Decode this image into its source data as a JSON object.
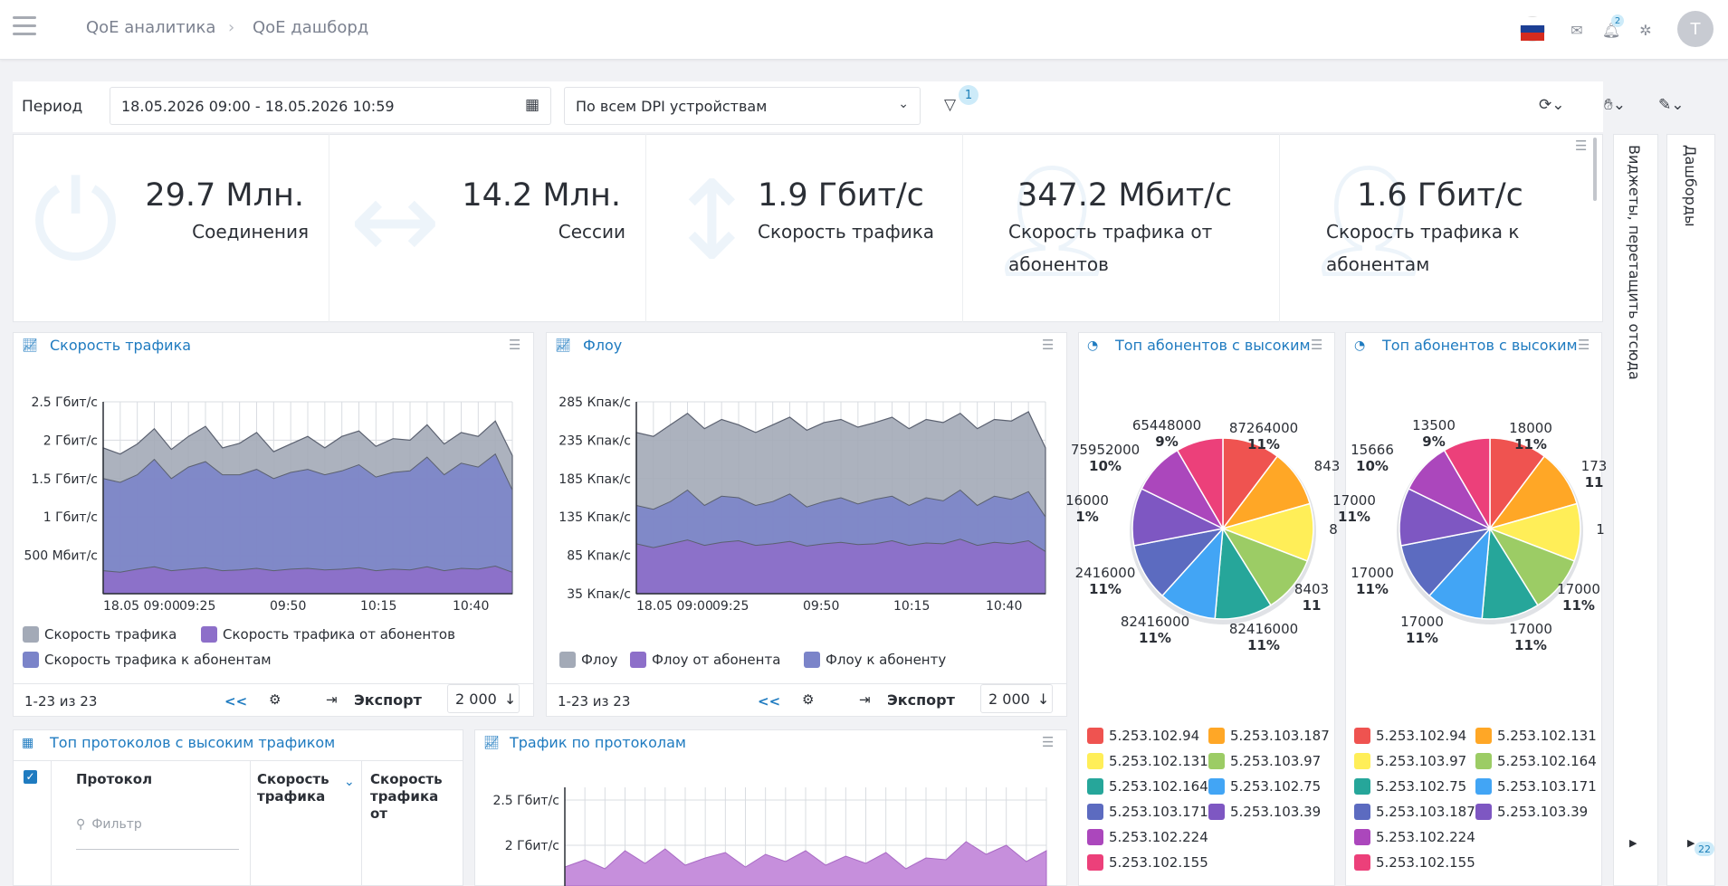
{
  "breadcrumb": {
    "root": "QoE аналитика",
    "current": "QoE дашборд"
  },
  "header": {
    "notifications_count": "2",
    "avatar_letter": "T"
  },
  "toolbar": {
    "period_label": "Период",
    "period_value": "18.05.2026 09:00 - 18.05.2026 10:59",
    "device_value": "По всем DPI устройствам",
    "filter_count": "1"
  },
  "kpis": [
    {
      "value": "29.7 Млн.",
      "label": "Соединения",
      "icon": "plug-icon"
    },
    {
      "value": "14.2 Млн.",
      "label": "Сессии",
      "icon": "arrows-horizontal-icon"
    },
    {
      "value": "1.9 Гбит/с",
      "label": "Скорость трафика",
      "icon": "arrows-vertical-icon"
    },
    {
      "value": "347.2 Мбит/с",
      "label": "Скорость трафика от абонентов",
      "icon": "user-icon"
    },
    {
      "value": "1.6 Гбит/с",
      "label": "Скорость трафика к абонентам",
      "icon": "user-icon"
    }
  ],
  "traffic_panel": {
    "title": "Скорость трафика",
    "range": "1-23 из 23",
    "prev": "<<",
    "export": "Экспорт",
    "rows": "2 000"
  },
  "flow_panel": {
    "title": "Флоу",
    "range": "1-23 из 23",
    "prev": "<<",
    "export": "Экспорт",
    "rows": "2 000"
  },
  "pie1": {
    "title": "Топ абонентов с высоким"
  },
  "pie2": {
    "title": "Топ абонентов с высоким"
  },
  "protocols_table": {
    "title": "Топ протоколов с высоким трафиком",
    "col_protocol": "Протокол",
    "col_speed": "Скорость трафика",
    "col_speed_from": "Скорость трафика от",
    "filter_placeholder": "Фильтр"
  },
  "proto_traffic": {
    "title": "Трафик по протоколам"
  },
  "side": {
    "widgets": "Виджеты, перетащить отсюда",
    "dashboards": "Дашборды",
    "counter": "22"
  },
  "colors": {
    "accent": "#1f7bc0",
    "grey_area": "#a3aab7",
    "blue_area": "#7b84c9",
    "purple_area": "#8d6fc9"
  },
  "chart_data": [
    {
      "type": "area",
      "title": "Скорость трафика",
      "x_ticks": [
        "18.05 09:00",
        "09:25",
        "09:50",
        "10:15",
        "10:40"
      ],
      "y_ticks": [
        "500 Мбит/с",
        "1 Гбит/с",
        "1.5 Гбит/с",
        "2 Гбит/с",
        "2.5 Гбит/с"
      ],
      "ylim": [
        0,
        2.5
      ],
      "series": [
        {
          "name": "Скорость трафика",
          "color": "#a3aab7",
          "values": [
            1.9,
            1.82,
            1.95,
            2.15,
            1.88,
            2.05,
            2.18,
            1.9,
            1.96,
            2.1,
            1.85,
            1.95,
            2.05,
            1.9,
            2.05,
            2.12,
            1.92,
            2.02,
            2.0,
            2.2,
            1.95,
            2.1,
            2.05,
            2.25,
            1.8
          ]
        },
        {
          "name": "Скорость трафика к абонентам",
          "color": "#7b84c9",
          "values": [
            1.5,
            1.45,
            1.55,
            1.75,
            1.5,
            1.65,
            1.72,
            1.55,
            1.55,
            1.62,
            1.5,
            1.58,
            1.62,
            1.55,
            1.6,
            1.68,
            1.52,
            1.58,
            1.6,
            1.78,
            1.55,
            1.7,
            1.65,
            1.82,
            1.35
          ]
        },
        {
          "name": "Скорость трафика от абонентов",
          "color": "#8d6fc9",
          "values": [
            0.3,
            0.28,
            0.32,
            0.35,
            0.3,
            0.32,
            0.34,
            0.3,
            0.31,
            0.33,
            0.3,
            0.32,
            0.33,
            0.31,
            0.32,
            0.34,
            0.3,
            0.32,
            0.31,
            0.35,
            0.3,
            0.33,
            0.32,
            0.36,
            0.28
          ]
        }
      ]
    },
    {
      "type": "area",
      "title": "Флоу",
      "x_ticks": [
        "18.05 09:00",
        "09:25",
        "09:50",
        "10:15",
        "10:40"
      ],
      "y_ticks": [
        "35 Кпак/с",
        "85 Кпак/с",
        "135 Кпак/с",
        "185 Кпак/с",
        "235 Кпак/с",
        "285 Кпак/с"
      ],
      "ylim": [
        35,
        285
      ],
      "series": [
        {
          "name": "Флоу",
          "color": "#a3aab7",
          "values": [
            245,
            240,
            255,
            270,
            250,
            262,
            255,
            245,
            255,
            265,
            248,
            258,
            262,
            252,
            258,
            265,
            250,
            262,
            258,
            270,
            250,
            262,
            260,
            272,
            225
          ]
        },
        {
          "name": "Флоу к абоненту",
          "color": "#7b84c9",
          "values": [
            150,
            145,
            155,
            170,
            150,
            162,
            160,
            150,
            155,
            165,
            148,
            155,
            160,
            152,
            158,
            162,
            150,
            160,
            156,
            170,
            150,
            162,
            158,
            168,
            135
          ]
        },
        {
          "name": "Флоу от абонента",
          "color": "#8d6fc9",
          "values": [
            100,
            95,
            100,
            105,
            98,
            102,
            104,
            98,
            100,
            103,
            97,
            100,
            102,
            99,
            100,
            104,
            98,
            101,
            100,
            106,
            98,
            102,
            100,
            104,
            90
          ]
        }
      ]
    },
    {
      "type": "pie",
      "title": "Топ абонентов с высоким",
      "labels": [
        {
          "name": "87264000",
          "pct": "11%"
        },
        {
          "name": "843",
          "pct": ""
        },
        {
          "name": "8",
          "pct": ""
        },
        {
          "name": "8403",
          "pct": "11"
        },
        {
          "name": "82416000",
          "pct": "11%"
        },
        {
          "name": "82416000",
          "pct": "11%"
        },
        {
          "name": "2416000",
          "pct": "11%"
        },
        {
          "name": "16000",
          "pct": "1%"
        },
        {
          "name": "75952000",
          "pct": "10%"
        },
        {
          "name": "65448000",
          "pct": "9%"
        }
      ],
      "legend": [
        "5.253.102.94",
        "5.253.103.187",
        "5.253.102.131",
        "5.253.103.97",
        "5.253.102.164",
        "5.253.102.75",
        "5.253.103.171",
        "5.253.103.39",
        "5.253.102.224",
        "5.253.102.155"
      ]
    },
    {
      "type": "pie",
      "title": "Топ абонентов с высоким",
      "labels": [
        {
          "name": "18000",
          "pct": "11%"
        },
        {
          "name": "173",
          "pct": "11"
        },
        {
          "name": "1",
          "pct": ""
        },
        {
          "name": "17000",
          "pct": "11%"
        },
        {
          "name": "17000",
          "pct": "11%"
        },
        {
          "name": "17000",
          "pct": "11%"
        },
        {
          "name": "17000",
          "pct": "11%"
        },
        {
          "name": "17000",
          "pct": "11%"
        },
        {
          "name": "15666",
          "pct": "10%"
        },
        {
          "name": "13500",
          "pct": "9%"
        }
      ],
      "legend": [
        "5.253.102.94",
        "5.253.102.131",
        "5.253.103.97",
        "5.253.102.164",
        "5.253.102.75",
        "5.253.103.171",
        "5.253.103.187",
        "5.253.103.39",
        "5.253.102.224",
        "5.253.102.155"
      ]
    },
    {
      "type": "area",
      "title": "Трафик по протоколам",
      "y_ticks": [
        "2 Гбит/с",
        "2.5 Гбит/с"
      ]
    }
  ],
  "pie_colors": [
    "#ef5350",
    "#ffa726",
    "#ffee58",
    "#9ccc65",
    "#26a69a",
    "#42a5f5",
    "#5c6bc0",
    "#7e57c2",
    "#ab47bc",
    "#ec407a"
  ]
}
